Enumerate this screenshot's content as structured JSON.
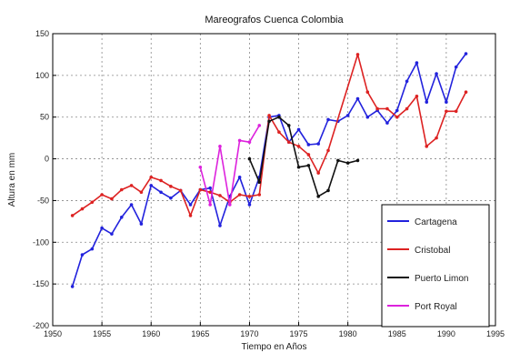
{
  "chart_data": {
    "type": "line",
    "title": "Mareografos Cuenca Colombia",
    "xlabel": "Tiempo en Años",
    "ylabel": "Altura en mm",
    "xlim": [
      1950,
      1995
    ],
    "ylim": [
      -200,
      150
    ],
    "xticks": [
      1950,
      1955,
      1960,
      1965,
      1970,
      1975,
      1980,
      1985,
      1990,
      1995
    ],
    "yticks": [
      -200,
      -150,
      -100,
      -50,
      0,
      50,
      100,
      150
    ],
    "grid": true,
    "legend_position": "bottom-right",
    "series": [
      {
        "name": "Cartagena",
        "color": "#2222dd",
        "x": [
          1952,
          1953,
          1954,
          1955,
          1956,
          1957,
          1958,
          1959,
          1960,
          1961,
          1962,
          1963,
          1964,
          1965,
          1966,
          1967,
          1968,
          1969,
          1970,
          1971,
          1972,
          1973,
          1974,
          1975,
          1976,
          1977,
          1978,
          1979,
          1980,
          1981,
          1982,
          1983,
          1984,
          1985,
          1986,
          1987,
          1988,
          1989,
          1990,
          1991,
          1992
        ],
        "y": [
          -153,
          -115,
          -108,
          -83,
          -90,
          -70,
          -55,
          -78,
          -32,
          -40,
          -47,
          -38,
          -55,
          -37,
          -35,
          -80,
          -45,
          -22,
          -55,
          -22,
          50,
          52,
          20,
          35,
          17,
          18,
          47,
          45,
          52,
          72,
          50,
          58,
          43,
          58,
          93,
          115,
          68,
          102,
          68,
          110,
          126
        ]
      },
      {
        "name": "Cristobal",
        "color": "#dd2222",
        "x": [
          1952,
          1953,
          1954,
          1955,
          1956,
          1957,
          1958,
          1959,
          1960,
          1961,
          1962,
          1963,
          1964,
          1965,
          1966,
          1967,
          1968,
          1969,
          1970,
          1971,
          1972,
          1973,
          1974,
          1975,
          1976,
          1977,
          1978,
          1981,
          1982,
          1983,
          1984,
          1985,
          1986,
          1987,
          1988,
          1989,
          1990,
          1991,
          1992
        ],
        "y": [
          -68,
          -60,
          -52,
          -43,
          -48,
          -37,
          -32,
          -40,
          -22,
          -26,
          -33,
          -38,
          -68,
          -37,
          -40,
          -44,
          -52,
          -43,
          -45,
          -43,
          52,
          32,
          20,
          15,
          5,
          -17,
          10,
          125,
          80,
          60,
          60,
          50,
          60,
          75,
          15,
          25,
          57,
          57,
          80
        ]
      },
      {
        "name": "Puerto Limon",
        "color": "#111111",
        "x": [
          1970,
          1971,
          1972,
          1973,
          1974,
          1975,
          1976,
          1977,
          1978,
          1979,
          1980,
          1981
        ],
        "y": [
          0,
          -28,
          45,
          50,
          40,
          -10,
          -8,
          -45,
          -38,
          -2,
          -5,
          -2
        ]
      },
      {
        "name": "Port Royal",
        "color": "#dd22dd",
        "x": [
          1965,
          1966,
          1967,
          1968,
          1969,
          1970,
          1971
        ],
        "y": [
          -10,
          -55,
          15,
          -55,
          22,
          20,
          40
        ]
      }
    ]
  }
}
